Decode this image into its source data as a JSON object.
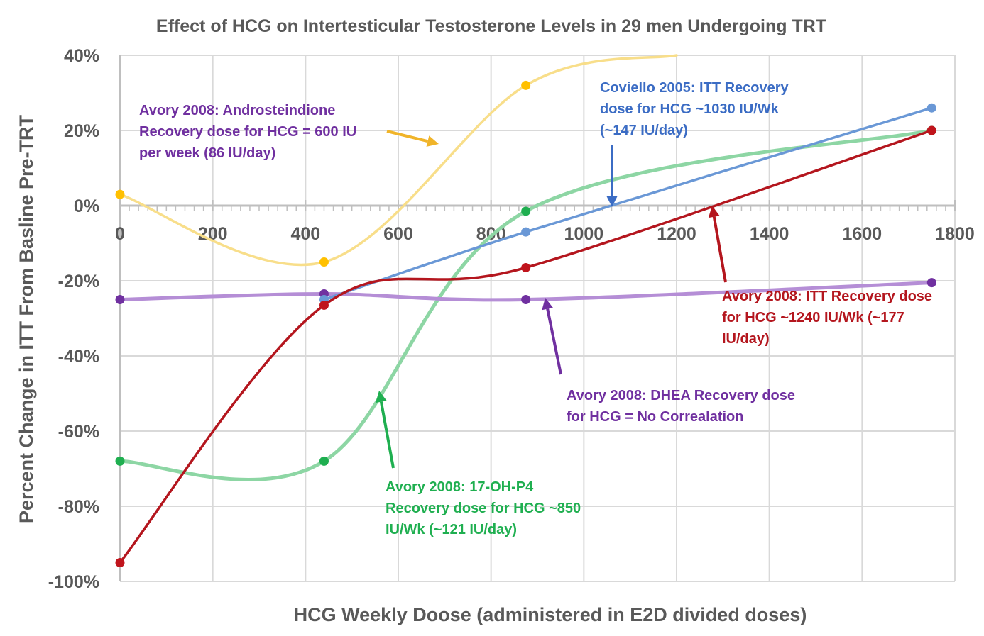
{
  "chart_data": {
    "type": "line",
    "title": "Effect of HCG on Intertesticular Testosterone Levels in 29 men Undergoing TRT",
    "xlabel": "HCG Weekly Doose (administered in E2D divided doses)",
    "ylabel": "Percent Change in ITT From Basline Pre-TRT",
    "xlim": [
      0,
      1800
    ],
    "ylim": [
      -100,
      40
    ],
    "xticks": [
      0,
      200,
      400,
      600,
      800,
      1000,
      1200,
      1400,
      1600,
      1800
    ],
    "xtick_labels": [
      "0",
      "200",
      "400",
      "600",
      "800",
      "1000",
      "1200",
      "1400",
      "1600",
      "1800"
    ],
    "yticks": [
      40,
      20,
      0,
      -20,
      -40,
      -60,
      -80,
      -100
    ],
    "ytick_labels": [
      "40%",
      "20%",
      "0%",
      "-20%",
      "-40%",
      "-60%",
      "-80%",
      "-100%"
    ],
    "grid": true,
    "smooth": true,
    "series": [
      {
        "name": "Androstenedione",
        "color": "#FFC000",
        "line_color": "#F8DE8A",
        "points": [
          [
            0,
            3
          ],
          [
            440,
            -15
          ],
          [
            875,
            32
          ],
          [
            1200,
            40
          ]
        ],
        "marker_count": 3
      },
      {
        "name": "ITT (Coviello)",
        "color": "#6A98D6",
        "line_color": "#6A98D6",
        "points": [
          [
            440,
            -25
          ],
          [
            875,
            -7
          ],
          [
            1750,
            26
          ]
        ],
        "marker_count": 3
      },
      {
        "name": "ITT (Avory)",
        "color": "#C0141C",
        "line_color": "#B4161E",
        "points": [
          [
            0,
            -95
          ],
          [
            440,
            -26.5
          ],
          [
            875,
            -16.5
          ],
          [
            1750,
            20
          ]
        ],
        "marker_count": 4
      },
      {
        "name": "17-OH-P4",
        "color": "#1FAF50",
        "line_color": "#8DD6A4",
        "points": [
          [
            0,
            -68
          ],
          [
            440,
            -68
          ],
          [
            875,
            -1.5
          ],
          [
            1750,
            20
          ]
        ],
        "marker_count": 4
      },
      {
        "name": "DHEA",
        "color": "#7030A0",
        "line_color": "#B58ED6",
        "points": [
          [
            0,
            -25
          ],
          [
            440,
            -23.5
          ],
          [
            875,
            -25
          ],
          [
            1750,
            -20.5
          ]
        ],
        "marker_count": 4
      }
    ],
    "annotations": [
      {
        "id": "androstenedione",
        "color": "#7030A0",
        "lines": [
          "Avory 2008: Androsteindione",
          "Recovery dose for HCG = 600 IU",
          "per week (86 IU/day)"
        ],
        "arrow_color": "#F0B429"
      },
      {
        "id": "coviello",
        "color": "#3B6CC4",
        "lines": [
          "Coviello 2005: ITT Recovery",
          "dose for HCG ~1030 IU/Wk",
          "(~147 IU/day)"
        ],
        "arrow_color": "#3B6CC4",
        "points_to_x": 1060
      },
      {
        "id": "avory-itt",
        "color": "#B4161E",
        "lines": [
          "Avory 2008: ITT Recovery dose",
          "for HCG ~1240 IU/Wk (~177",
          "IU/day)"
        ],
        "arrow_color": "#B4161E",
        "points_to_x": 1270
      },
      {
        "id": "dhea",
        "color": "#7030A0",
        "lines": [
          "Avory 2008: DHEA Recovery dose",
          "for HCG = No Correalation"
        ],
        "arrow_color": "#7030A0"
      },
      {
        "id": "17ohp4",
        "color": "#1FAF50",
        "lines": [
          "Avory 2008: 17-OH-P4",
          "Recovery dose for HCG ~850",
          "IU/Wk (~121 IU/day)"
        ],
        "arrow_color": "#1FAF50"
      }
    ]
  }
}
